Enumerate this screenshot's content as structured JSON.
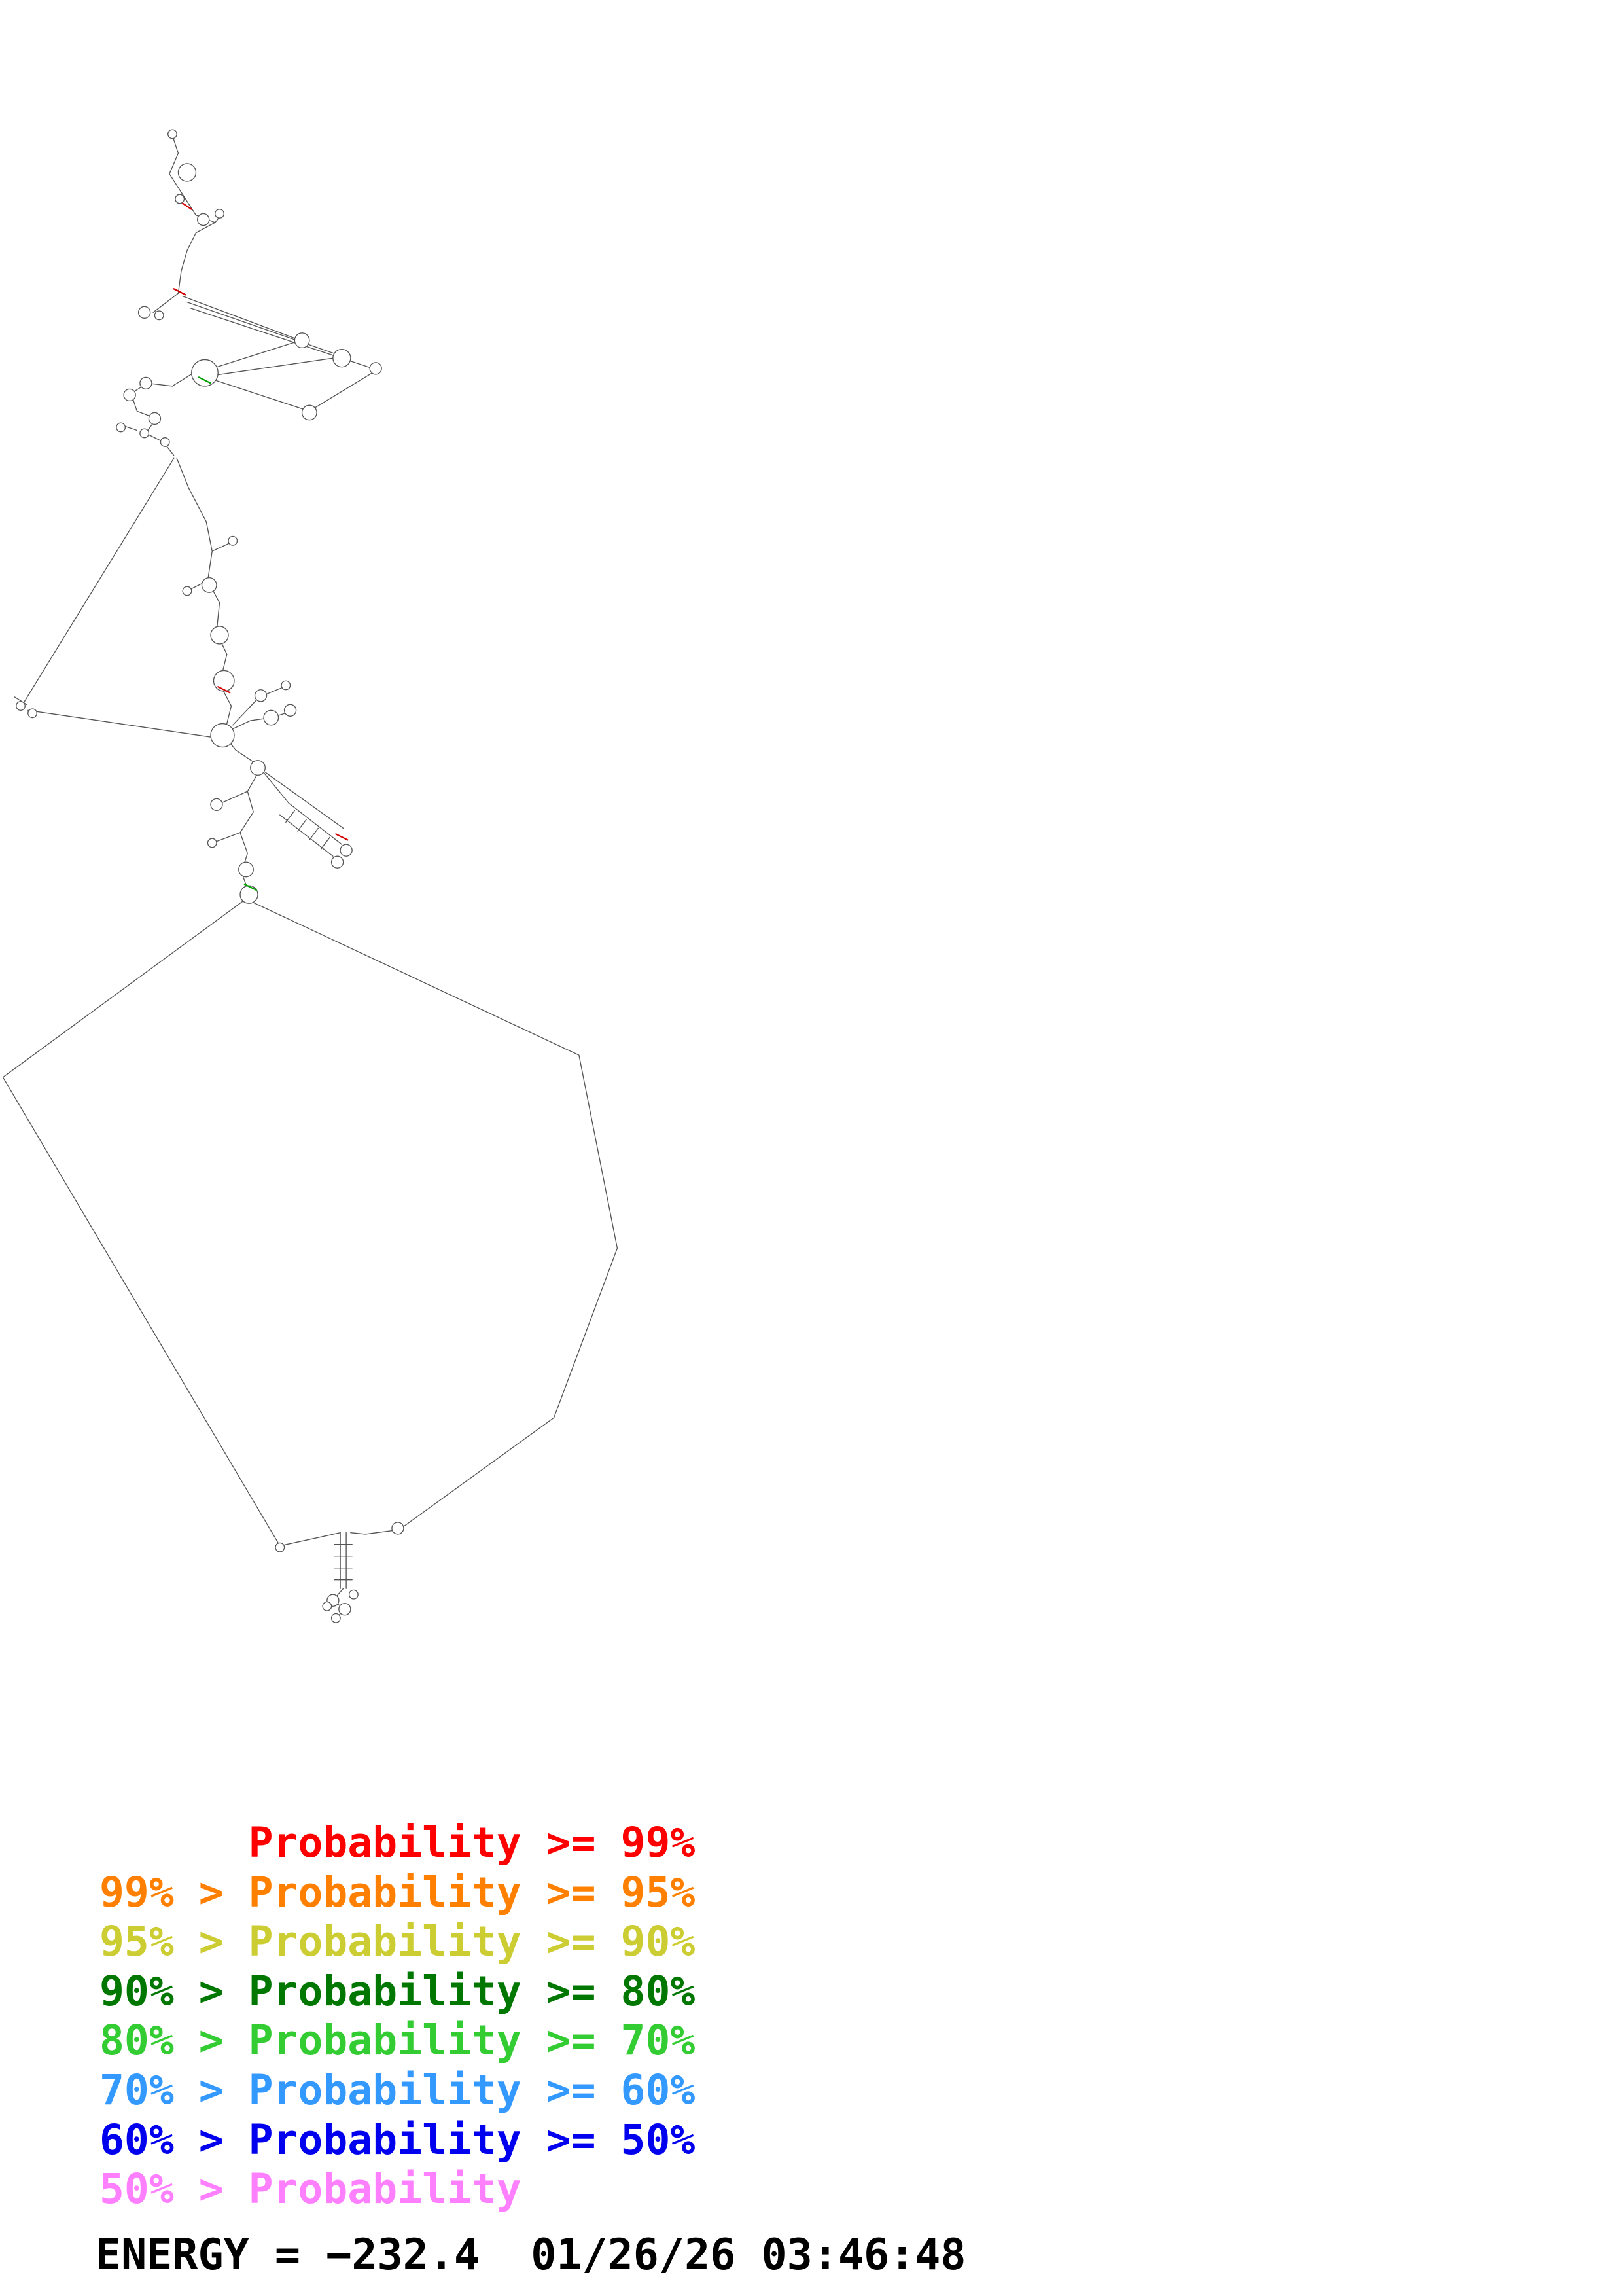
{
  "legend": {
    "entries": [
      {
        "text": "      Probability >= 99%",
        "color": "#ff0000"
      },
      {
        "text": "99% > Probability >= 95%",
        "color": "#ff8000"
      },
      {
        "text": "95% > Probability >= 90%",
        "color": "#cccc33"
      },
      {
        "text": "90% > Probability >= 80%",
        "color": "#007700"
      },
      {
        "text": "80% > Probability >= 70%",
        "color": "#33cc33"
      },
      {
        "text": "70% > Probability >= 60%",
        "color": "#3399ff"
      },
      {
        "text": "60% > Probability >= 50%",
        "color": "#0000ee"
      },
      {
        "text": "50% > Probability",
        "color": "#ff80ff"
      }
    ]
  },
  "footer": {
    "energy_text": "ENERGY = −232.4  01/26/26 03:46:48",
    "energy_value": "−232.4",
    "timestamp": "01/26/26 03:46:48"
  }
}
